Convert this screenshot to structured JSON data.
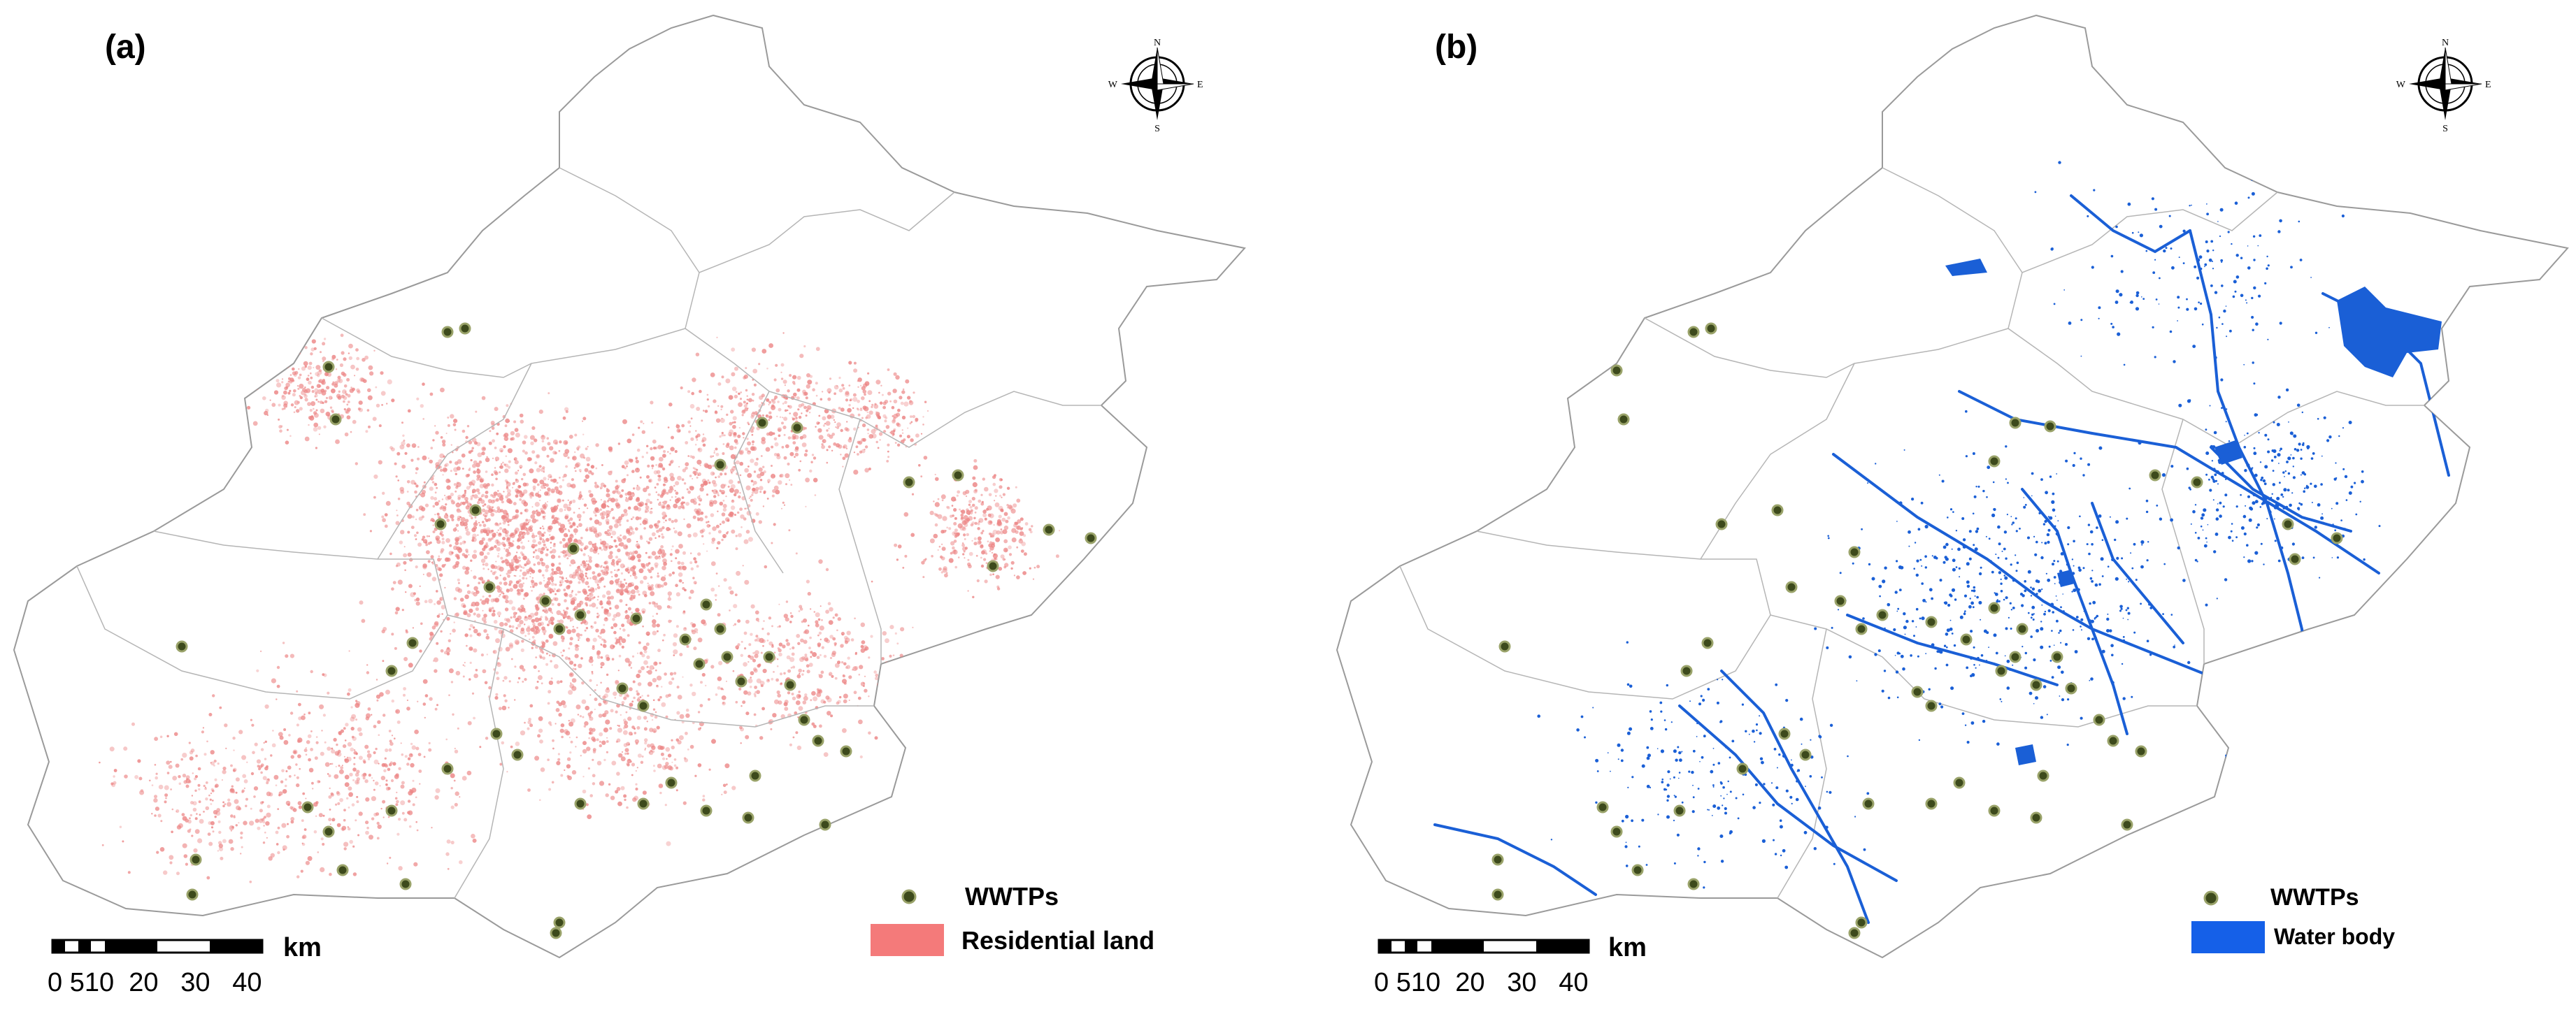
{
  "panels": [
    {
      "id": "a",
      "label": "(a)",
      "layer_color": "#ec8585",
      "legend": {
        "items": [
          {
            "symbol": "wwtp-point",
            "label": "WWTPs"
          },
          {
            "symbol": "fill",
            "color": "#f47a7a",
            "label": "Residential land"
          }
        ]
      },
      "scale": {
        "unit": "km",
        "ticks": [
          "0",
          "5",
          "10",
          "20",
          "30",
          "40"
        ]
      },
      "north_arrow": {
        "letters": [
          "N",
          "E",
          "S",
          "W"
        ]
      }
    },
    {
      "id": "b",
      "label": "(b)",
      "layer_color": "#1a5fd6",
      "legend": {
        "items": [
          {
            "symbol": "wwtp-point",
            "label": "WWTPs"
          },
          {
            "symbol": "fill",
            "color": "#1560e8",
            "label": "Water body"
          }
        ]
      },
      "scale": {
        "unit": "km",
        "ticks": [
          "0",
          "5",
          "10",
          "20",
          "30",
          "40"
        ]
      },
      "north_arrow": {
        "letters": [
          "N",
          "E",
          "S",
          "W"
        ]
      }
    }
  ],
  "colors": {
    "wwtp_fill": "#3d4a1c",
    "wwtp_ring": "#9aa36a",
    "boundary": "#9a9a9a"
  }
}
